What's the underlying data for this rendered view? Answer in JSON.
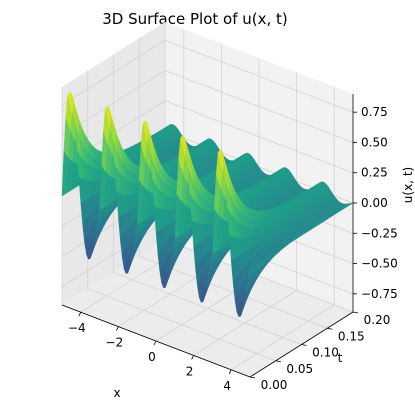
{
  "chart_data": {
    "type": "surface",
    "title": "3D Surface Plot of u(x, t)",
    "xlabel": "x",
    "ylabel": "t",
    "zlabel": "u(x, t)",
    "x_ticks": [
      "−4",
      "−2",
      "0",
      "2",
      "4"
    ],
    "t_ticks": [
      "0.00",
      "0.05",
      "0.10",
      "0.15",
      "0.20"
    ],
    "z_ticks": [
      "0.75",
      "0.50",
      "0.25",
      "0.00",
      "−0.25",
      "−0.50",
      "−0.75"
    ],
    "xlim": [
      -5,
      5
    ],
    "tlim": [
      0,
      0.2
    ],
    "zlim": [
      -0.9,
      0.9
    ],
    "colormap": "viridis",
    "grid": true,
    "peaks_x": [
      -4,
      -2,
      0,
      2,
      4
    ],
    "peak_value_t0": 0.85,
    "trough_value_t0": -0.85,
    "late_time_amplitude": 0.07
  }
}
